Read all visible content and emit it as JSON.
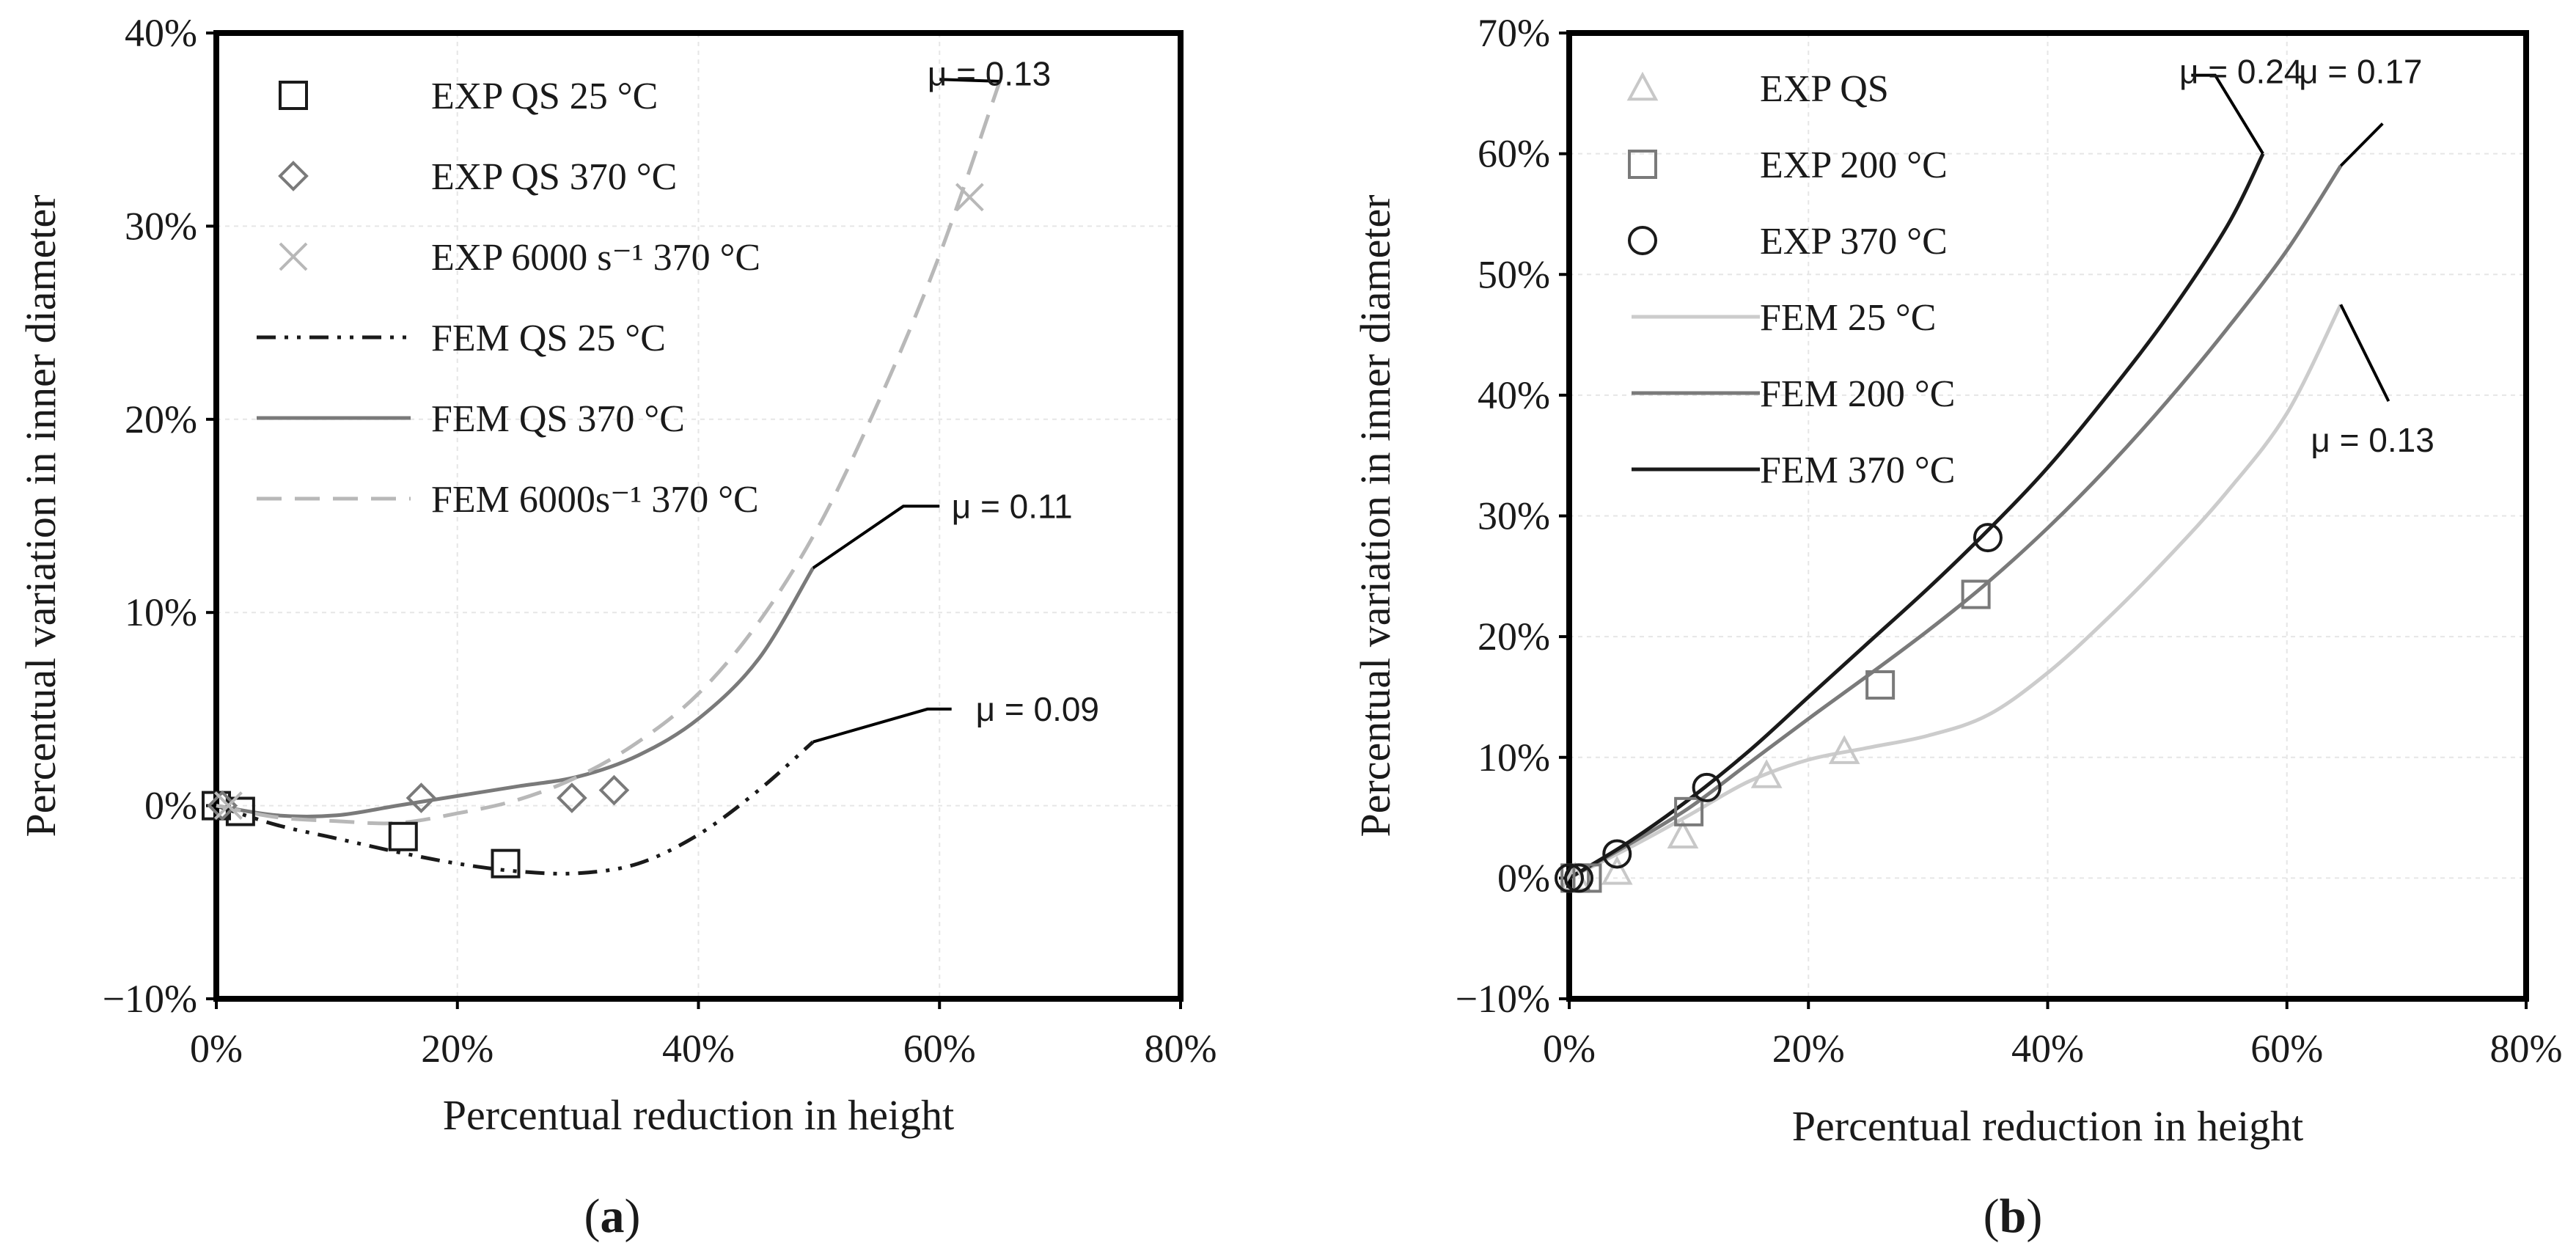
{
  "chart_data": [
    {
      "panel": "(a)",
      "panel_letter": "a",
      "type": "scatter+line",
      "xlabel": "Percentual reduction in height",
      "ylabel": "Percentual variation in inner diameter",
      "xlim": [
        0,
        80
      ],
      "ylim": [
        -10,
        40
      ],
      "xticks": [
        0,
        20,
        40,
        60,
        80
      ],
      "yticks": [
        -10,
        0,
        10,
        20,
        30,
        40
      ],
      "xtick_labels": [
        "0%",
        "20%",
        "40%",
        "60%",
        "80%"
      ],
      "ytick_labels": [
        "−10%",
        "0%",
        "10%",
        "20%",
        "30%",
        "40%"
      ],
      "grid": true,
      "legend_position": "top-left",
      "series": [
        {
          "name": "EXP QS  25 °C",
          "kind": "marker",
          "marker": "square",
          "color": "#1a1a1a",
          "x": [
            0,
            2,
            15.5,
            24
          ],
          "y": [
            0,
            -0.3,
            -1.6,
            -3.0
          ]
        },
        {
          "name": "EXP QS  370 °C",
          "kind": "marker",
          "marker": "diamond",
          "color": "#7a7a7a",
          "x": [
            0.5,
            17,
            29.5,
            33
          ],
          "y": [
            0,
            0.4,
            0.4,
            0.8
          ]
        },
        {
          "name": "EXP 6000 s⁻¹  370 °C",
          "kind": "marker",
          "marker": "cross",
          "color": "#b8b8b8",
          "x": [
            1,
            62.5
          ],
          "y": [
            0,
            31.5
          ]
        },
        {
          "name": "FEM QS  25 °C",
          "kind": "line",
          "dash": "dashdotdot",
          "color": "#1a1a1a",
          "x": [
            0,
            5,
            10,
            15,
            20,
            25,
            30,
            35,
            40,
            45,
            49.5
          ],
          "y": [
            0,
            -1.0,
            -1.7,
            -2.4,
            -3.0,
            -3.4,
            -3.5,
            -3.0,
            -1.5,
            0.8,
            3.3
          ]
        },
        {
          "name": "FEM QS  370 °C",
          "kind": "line",
          "dash": "solid",
          "color": "#7a7a7a",
          "x": [
            0,
            5,
            10,
            15,
            20,
            25,
            30,
            35,
            40,
            45,
            49.5
          ],
          "y": [
            0,
            -0.5,
            -0.5,
            0,
            0.5,
            1.0,
            1.5,
            2.6,
            4.5,
            7.6,
            12.3
          ]
        },
        {
          "name": "FEM 6000s⁻¹  370 °C",
          "kind": "line",
          "dash": "dashed",
          "color": "#b8b8b8",
          "x": [
            0,
            5,
            10,
            15,
            20,
            25,
            30,
            35,
            40,
            45,
            50,
            55,
            60,
            65
          ],
          "y": [
            0,
            -0.6,
            -0.8,
            -0.9,
            -0.4,
            0.3,
            1.5,
            3.3,
            5.8,
            9.5,
            14.5,
            21.0,
            28.5,
            37.5
          ]
        }
      ],
      "annotations": [
        {
          "text": "μ = 0.13",
          "leader": [
            [
              60,
              37.6
            ],
            [
              65,
              37.5
            ]
          ],
          "text_at": [
            59,
            37.9
          ]
        },
        {
          "text": "μ = 0.11",
          "leader": [
            [
              49.5,
              12.3
            ],
            [
              57,
              15.5
            ],
            [
              60,
              15.5
            ]
          ],
          "text_at": [
            61,
            15.5
          ]
        },
        {
          "text": "μ = 0.09",
          "leader": [
            [
              49.5,
              3.3
            ],
            [
              59,
              5.0
            ],
            [
              61,
              5.0
            ]
          ],
          "text_at": [
            63,
            5.0
          ]
        }
      ]
    },
    {
      "panel": "(b)",
      "panel_letter": "b",
      "type": "scatter+line",
      "xlabel": "Percentual reduction in height",
      "ylabel": "Percentual variation in inner diameter",
      "xlim": [
        0,
        80
      ],
      "ylim": [
        -10,
        70
      ],
      "xticks": [
        0,
        20,
        40,
        60,
        80
      ],
      "yticks": [
        -10,
        0,
        10,
        20,
        30,
        40,
        50,
        60,
        70
      ],
      "xtick_labels": [
        "0%",
        "20%",
        "40%",
        "60%",
        "80%"
      ],
      "ytick_labels": [
        "−10%",
        "0%",
        "10%",
        "20%",
        "30%",
        "40%",
        "50%",
        "60%",
        "70%"
      ],
      "grid": true,
      "legend_position": "top-left",
      "series": [
        {
          "name": "EXP QS",
          "kind": "marker",
          "marker": "triangle",
          "color": "#c8c8c8",
          "x": [
            0.5,
            4,
            9.5,
            16.5,
            23
          ],
          "y": [
            0,
            0.5,
            3.5,
            8.5,
            10.5
          ]
        },
        {
          "name": "EXP 200 °C",
          "kind": "marker",
          "marker": "square",
          "color": "#7a7a7a",
          "x": [
            0.5,
            1.5,
            10,
            26,
            34
          ],
          "y": [
            0,
            0,
            5.5,
            16,
            23.5
          ]
        },
        {
          "name": "EXP 370 °C",
          "kind": "marker",
          "marker": "circle",
          "color": "#1a1a1a",
          "x": [
            0,
            0.8,
            4,
            11.5,
            35
          ],
          "y": [
            0,
            0,
            2,
            7.5,
            28.2
          ]
        },
        {
          "name": "FEM 25 °C",
          "kind": "line",
          "dash": "solid",
          "color": "#cccccc",
          "x": [
            0,
            5,
            10,
            15,
            20,
            25,
            30,
            35,
            40,
            45,
            50,
            55,
            60,
            64.5
          ],
          "y": [
            0,
            2.5,
            5.2,
            8.0,
            9.8,
            10.8,
            11.8,
            13.5,
            17.0,
            21.5,
            26.5,
            32.0,
            38.5,
            47.5
          ]
        },
        {
          "name": "FEM 200 °C",
          "kind": "line",
          "dash": "solid",
          "color": "#7a7a7a",
          "x": [
            0,
            5,
            10,
            15,
            20,
            25,
            30,
            35,
            40,
            45,
            50,
            55,
            60,
            64.5
          ],
          "y": [
            0,
            2.8,
            5.8,
            9.5,
            13.2,
            16.8,
            20.5,
            24.5,
            29.0,
            34.0,
            39.5,
            45.5,
            52.0,
            59.0
          ]
        },
        {
          "name": "FEM 370 °C",
          "kind": "line",
          "dash": "solid",
          "color": "#1a1a1a",
          "x": [
            0,
            5,
            10,
            15,
            20,
            25,
            30,
            35,
            40,
            45,
            50,
            55,
            58
          ],
          "y": [
            0,
            3.0,
            6.5,
            10.5,
            15.0,
            19.5,
            24.0,
            28.8,
            34.0,
            40.0,
            46.5,
            54.0,
            60.0
          ]
        }
      ],
      "annotations": [
        {
          "text": "μ  = 0.24",
          "leader": [
            [
              58,
              60
            ],
            [
              54,
              66.5
            ],
            [
              52,
              66.5
            ]
          ],
          "text_at": [
            51,
            66.8
          ]
        },
        {
          "text": "μ  = 0.17",
          "leader": [
            [
              64.5,
              59
            ],
            [
              68,
              62.5
            ]
          ],
          "text_at": [
            61,
            66.8
          ]
        },
        {
          "text": "μ = 0.13",
          "leader": [
            [
              64.5,
              47.5
            ],
            [
              68.5,
              39.5
            ]
          ],
          "text_at": [
            62,
            36.3
          ]
        }
      ]
    }
  ]
}
